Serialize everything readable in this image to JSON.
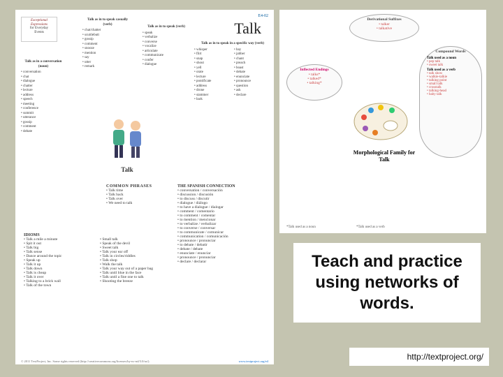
{
  "poster": {
    "code": "E4-02",
    "title": "Talk",
    "logo_lines": [
      "Exceptional",
      "Expressions",
      "for Everyday",
      "Events"
    ],
    "bubbles": {
      "noun": {
        "title": "Talk as in a conversation (noun)",
        "items": [
          "conversation",
          "chat",
          "dialogue",
          "chatter",
          "lecture",
          "address",
          "speech",
          "meeting",
          "conference",
          "summit",
          "utterance",
          "gossip",
          "comment",
          "debate"
        ]
      },
      "casual": {
        "title": "Talk as in to speak casually (verb)",
        "items": [
          "chat/chatter",
          "scuttlebutt",
          "gossip",
          "comment",
          "snooze",
          "mention",
          "say",
          "utter",
          "remark"
        ]
      },
      "speak": {
        "title": "Talk as in to speak (verb)",
        "items": [
          "speak",
          "verbalize",
          "converse",
          "vocalize",
          "articulate",
          "communicate",
          "confer",
          "dialogue"
        ]
      },
      "specific": {
        "title": "Talk as in to speak in a specific way (verb)",
        "left": [
          "whisper",
          "flirt",
          "snap",
          "shout",
          "yell",
          "orate",
          "lecture",
          "pontificate",
          "address",
          "drone",
          "stammer",
          "bark"
        ],
        "right": [
          "bay",
          "jabber",
          "chant",
          "preach",
          "boast",
          "debate",
          "enunciate",
          "pronounce",
          "question",
          "ask",
          "declare"
        ]
      }
    },
    "illus_label": "Talk",
    "phrases": {
      "hd": "COMMON PHRASES",
      "items": [
        "Talk time",
        "Talk back",
        "Talk over",
        "We need to talk"
      ]
    },
    "spanish": {
      "hd": "THE SPANISH CONNECTION",
      "items": [
        "conversation / conversación",
        "discussion / discusión",
        "to discuss / discutir",
        "dialogue / diálogo",
        "to have a dialogue / dialogar",
        "comment / comentario",
        "to comment / comentar",
        "to mention / mencionar",
        "to verbalize / verbalizar",
        "to converse / conversar",
        "to communicate / comunicar",
        "communication / comunicación",
        "pronounce / pronunciar",
        "to debate / debatir",
        "debate / debate",
        "enunciate / enunciar",
        "pronounce / pronunciar",
        "declare / declarar"
      ]
    },
    "idioms": {
      "hd": "IDIOMS",
      "col1": [
        "Talk a mile a minute",
        "Spit it out",
        "Talk big",
        "Talk sense",
        "Dance around the topic",
        "Speak up",
        "Talk it up",
        "Talk down",
        "Talk is cheap",
        "Talk it over",
        "Talking to a brick wall",
        "Talk of the town"
      ],
      "col2": [
        "Small talk",
        "Speak of the devil",
        "Sweet talk",
        "Talk your ear off",
        "Talk in circles/riddles",
        "Talk shop",
        "Walk the talk",
        "Talk your way out of a paper bag",
        "Talk until blue in the face",
        "Talk until a fine one to talk",
        "Shooting the breeze"
      ]
    },
    "footer_left": "© 2011 TextProject, Inc. Some rights reserved (http://creativecommons.org/licenses/by-nc-nd/3.0/us/).",
    "footer_right": "www.textproject.org/e4"
  },
  "poster2": {
    "deriv": {
      "t": "Derivational Suffixes",
      "items": [
        "talker",
        "talkative"
      ]
    },
    "infl": {
      "t": "Inflected Endings",
      "items": [
        "talks*",
        "talked*",
        "talking*"
      ]
    },
    "compound": {
      "t": "Compound Words",
      "groups": [
        {
          "sub": "Talk used as a noun",
          "items": [
            "pep talk",
            "sweet talk"
          ]
        },
        {
          "sub": "Talk used as a verb",
          "items": [
            "talk show",
            "walkie-talkie",
            "talking point",
            "small talk",
            "crosstalk",
            "talking-head",
            "baby talk"
          ]
        }
      ]
    },
    "morph_label": "Morphological Family for Talk",
    "note1": "*Talk used as a noun",
    "note2": "*Talk used as a verb",
    "palette_colors": [
      "#e74c3c",
      "#3498db",
      "#f1c40f",
      "#2ecc71",
      "#9b59b6",
      "#e67e22"
    ]
  },
  "caption": "Teach and practice using networks of words.",
  "url": "http://textproject.org/"
}
